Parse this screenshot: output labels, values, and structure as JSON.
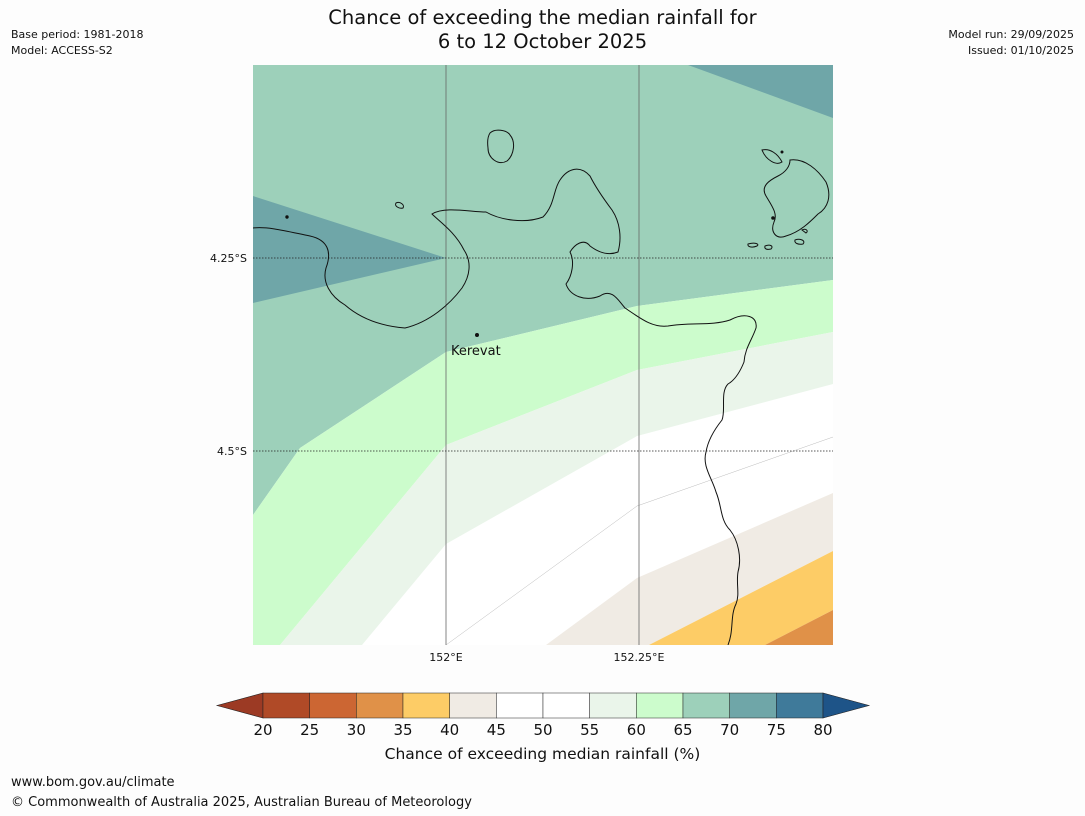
{
  "title": "Chance of exceeding the median rainfall for\n6 to 12 October 2025",
  "meta": {
    "base_period": "Base period: 1981-2018",
    "model": "Model: ACCESS-S2",
    "model_run": "Model run: 29/09/2025",
    "issued": "Issued: 01/10/2025"
  },
  "map": {
    "place_label": "Kerevat",
    "lat_labels": [
      "4.25°S",
      "4.5°S"
    ],
    "lon_labels": [
      "152°E",
      "152.25°E"
    ]
  },
  "colorbar": {
    "label": "Chance of exceeding median rainfall (%)",
    "ticks": [
      "20",
      "25",
      "30",
      "35",
      "40",
      "45",
      "50",
      "55",
      "60",
      "65",
      "70",
      "75",
      "80"
    ],
    "colors": {
      "below_20": "#9c3a24",
      "20-25": "#b04a27",
      "25-30": "#cc6633",
      "30-35": "#e09148",
      "35-40": "#fdcc66",
      "40-45": "#f0ebe4",
      "45-50": "#ffffff",
      "50-55": "#ffffff",
      "55-60": "#eaf5ea",
      "60-65": "#ccfccc",
      "65-70": "#9dd0ba",
      "70-75": "#6fa6a8",
      "75-80": "#3f7a9a",
      "above_80": "#1e5488"
    }
  },
  "footer": {
    "url": "www.bom.gov.au/climate",
    "copyright": "© Commonwealth of Australia 2025, Australian Bureau of Meteorology"
  }
}
